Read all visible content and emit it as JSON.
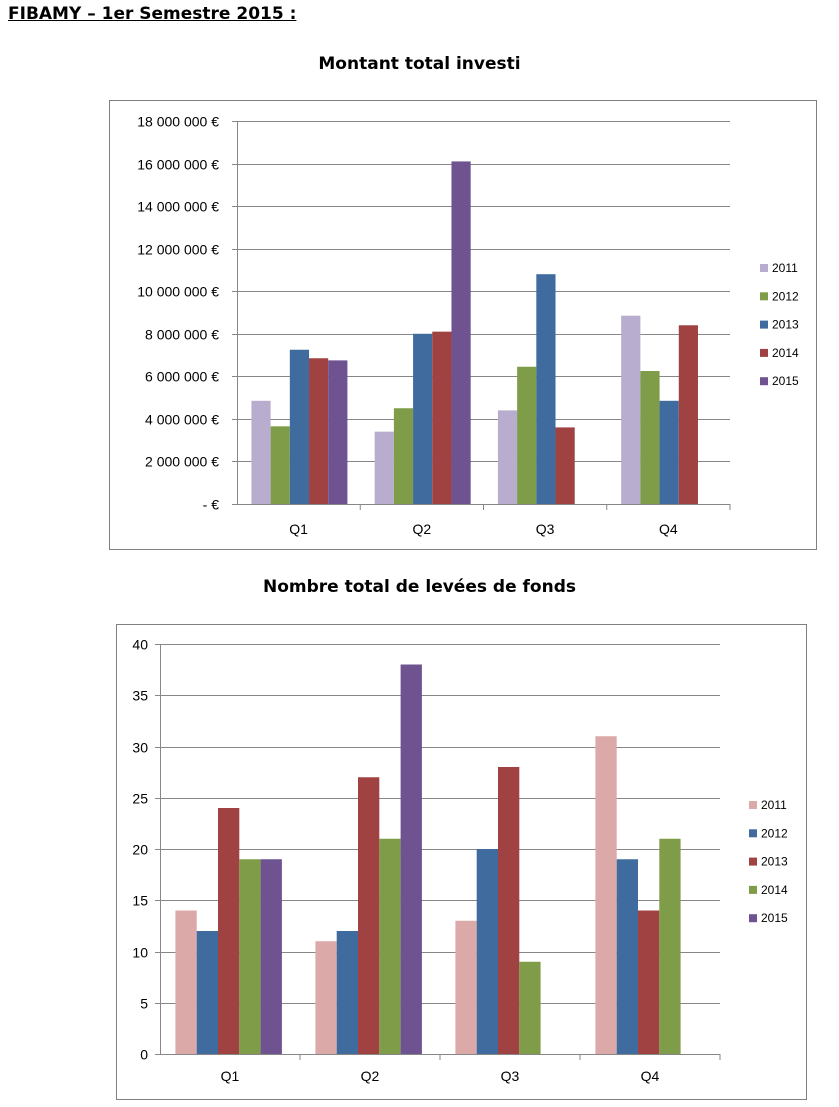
{
  "document": {
    "heading": "FIBAMY – 1er Semestre 2015 :"
  },
  "chart_data": [
    {
      "type": "bar",
      "title": "Montant total investi",
      "categories": [
        "Q1",
        "Q2",
        "Q3",
        "Q4"
      ],
      "ylim": [
        0,
        18000000
      ],
      "yticks": [
        "- €",
        "2 000 000 €",
        "4 000 000 €",
        "6 000 000 €",
        "8 000 000 €",
        "10 000 000 €",
        "12 000 000 €",
        "14 000 000 €",
        "16 000 000 €",
        "18 000 000 €"
      ],
      "grid": true,
      "legend": "right",
      "series": [
        {
          "name": "2011",
          "color": "#B9ADCF",
          "values": [
            4850000,
            3400000,
            4400000,
            8850000
          ]
        },
        {
          "name": "2012",
          "color": "#7F9C48",
          "values": [
            3650000,
            4500000,
            6450000,
            6250000
          ]
        },
        {
          "name": "2013",
          "color": "#3F6B9F",
          "values": [
            7250000,
            8000000,
            10800000,
            4850000
          ]
        },
        {
          "name": "2014",
          "color": "#A04242",
          "values": [
            6850000,
            8100000,
            3600000,
            8400000
          ]
        },
        {
          "name": "2015",
          "color": "#6F5390",
          "values": [
            6750000,
            16100000,
            null,
            null
          ]
        }
      ]
    },
    {
      "type": "bar",
      "title": "Nombre total de levées de fonds",
      "categories": [
        "Q1",
        "Q2",
        "Q3",
        "Q4"
      ],
      "ylim": [
        0,
        40
      ],
      "yticks": [
        "0",
        "5",
        "10",
        "15",
        "20",
        "25",
        "30",
        "35",
        "40"
      ],
      "grid": true,
      "legend": "right",
      "series": [
        {
          "name": "2011",
          "color": "#DBA9A8",
          "values": [
            14,
            11,
            13,
            31
          ]
        },
        {
          "name": "2012",
          "color": "#3F6B9F",
          "values": [
            12,
            12,
            20,
            19
          ]
        },
        {
          "name": "2013",
          "color": "#A04242",
          "values": [
            24,
            27,
            28,
            14
          ]
        },
        {
          "name": "2014",
          "color": "#7F9C48",
          "values": [
            19,
            21,
            9,
            21
          ]
        },
        {
          "name": "2015",
          "color": "#6F5390",
          "values": [
            19,
            38,
            null,
            null
          ]
        }
      ]
    }
  ]
}
